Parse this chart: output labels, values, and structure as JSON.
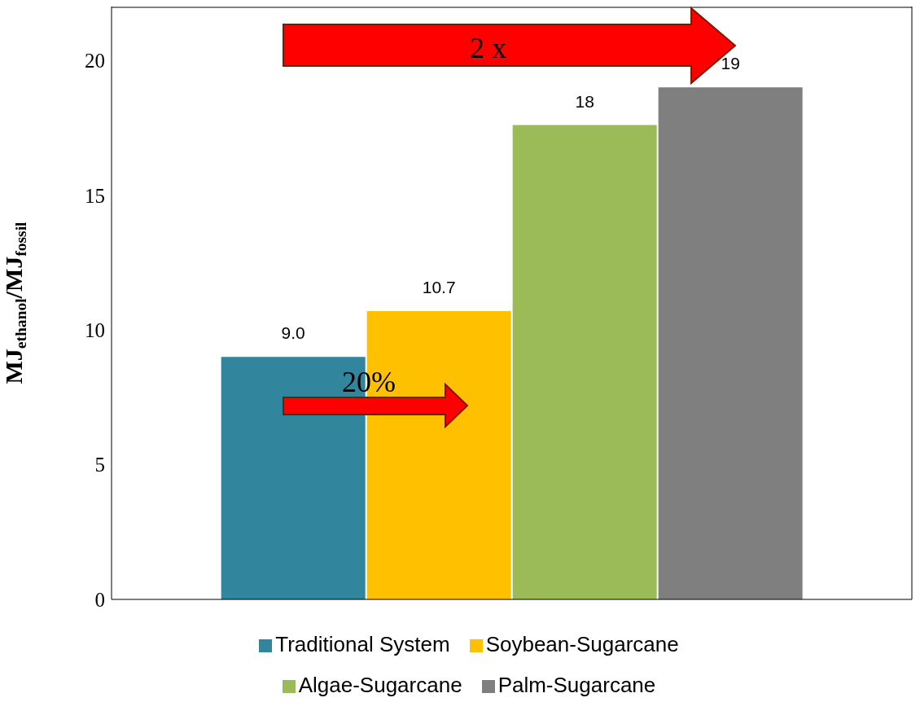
{
  "chart_data": {
    "type": "bar",
    "ylabel": "MJ$_{ethanol}$/MJ$_{fossil}$",
    "categories": [
      null
    ],
    "series": [
      {
        "name": "Traditional System",
        "color": "#31859c",
        "values": [
          9.0
        ],
        "value_labels": [
          "9.0"
        ]
      },
      {
        "name": "Soybean-Sugarcane",
        "color": "#ffc000",
        "values": [
          10.7
        ],
        "value_labels": [
          "10.7"
        ]
      },
      {
        "name": "Algae-Sugarcane",
        "color": "#9bbb59",
        "values": [
          17.6
        ],
        "value_labels": [
          "18"
        ]
      },
      {
        "name": "Palm-Sugarcane",
        "color": "#7f7f7f",
        "values": [
          19
        ],
        "value_labels": [
          "19"
        ]
      }
    ],
    "ylim": [
      0,
      22
    ],
    "yticks": [
      0,
      5,
      10,
      15,
      20
    ],
    "legend": "bottom",
    "annotations": [
      "2 x",
      "20%"
    ]
  }
}
